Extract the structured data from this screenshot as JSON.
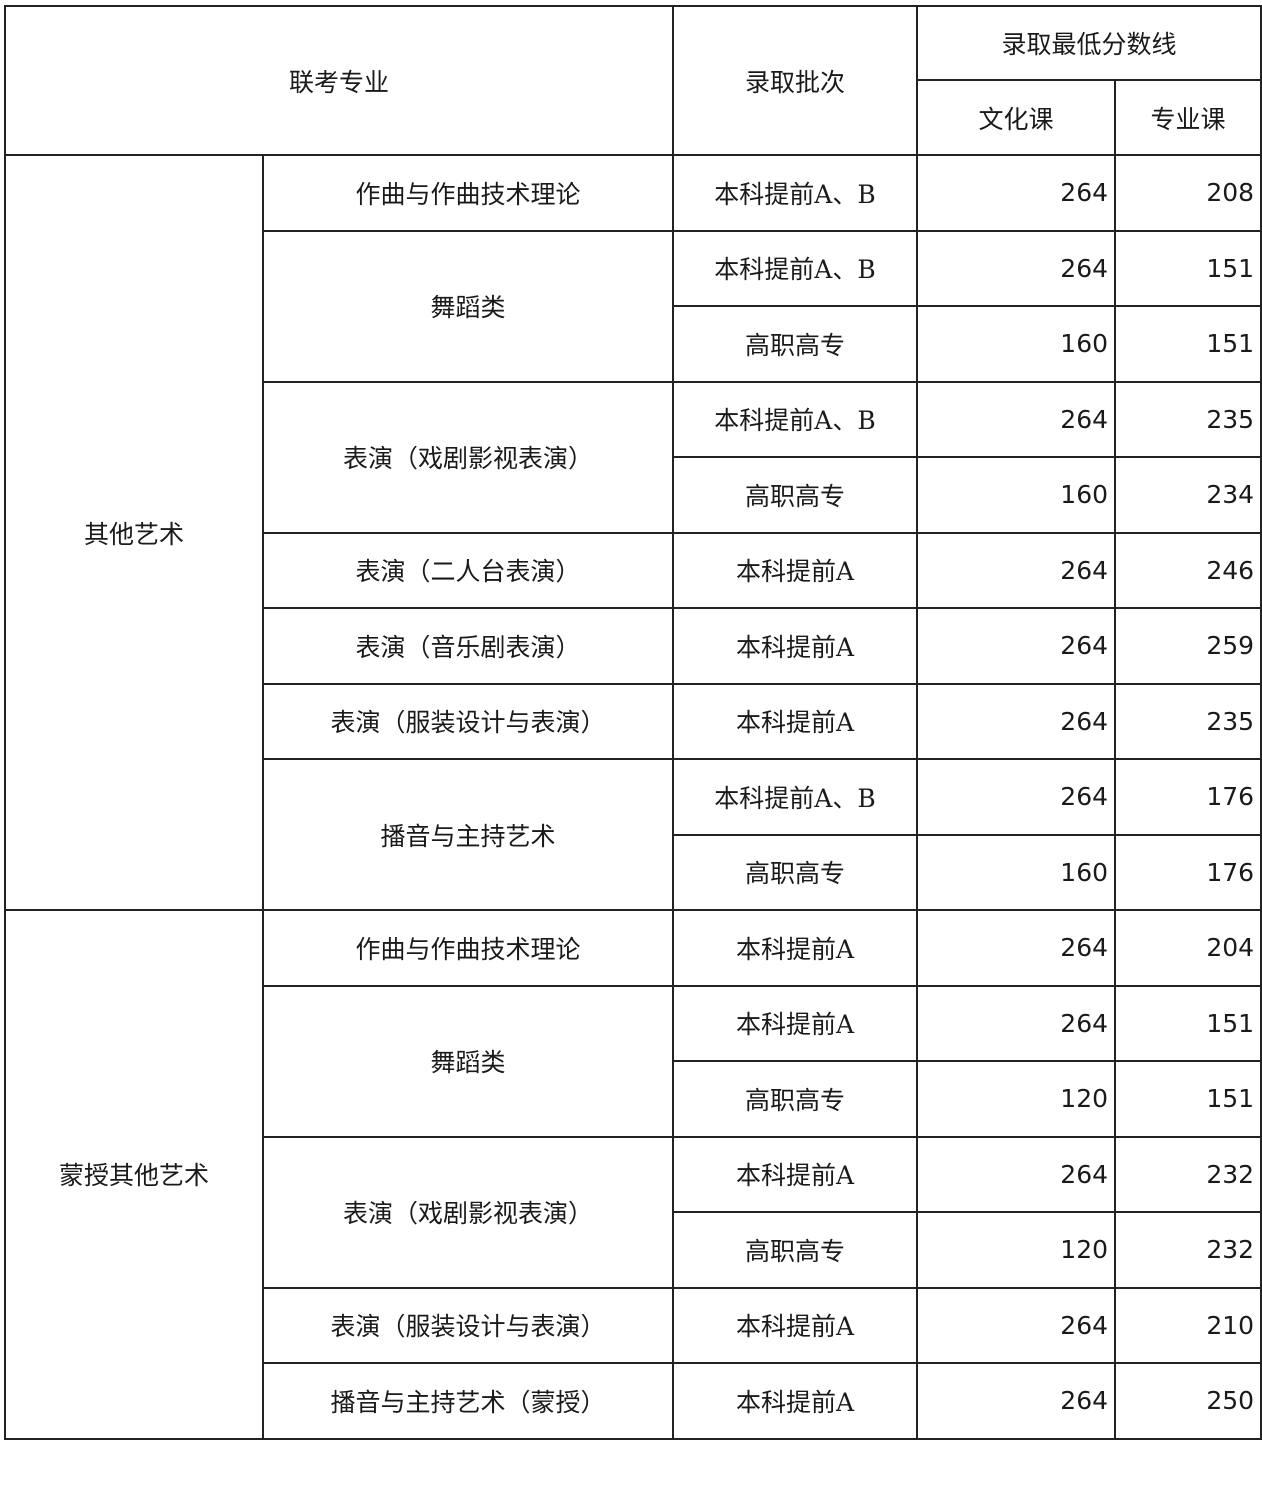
{
  "header": {
    "major": "联考专业",
    "batch": "录取批次",
    "min_score": "录取最低分数线",
    "culture": "文化课",
    "professional": "专业课"
  },
  "groups": [
    {
      "name": "其他艺术",
      "majors": [
        {
          "name": "作曲与作曲技术理论",
          "rows": [
            {
              "batch": "本科提前A、B",
              "culture": "264",
              "professional": "208"
            }
          ]
        },
        {
          "name": "舞蹈类",
          "rows": [
            {
              "batch": "本科提前A、B",
              "culture": "264",
              "professional": "151"
            },
            {
              "batch": "高职高专",
              "culture": "160",
              "professional": "151"
            }
          ]
        },
        {
          "name": "表演（戏剧影视表演）",
          "rows": [
            {
              "batch": "本科提前A、B",
              "culture": "264",
              "professional": "235"
            },
            {
              "batch": "高职高专",
              "culture": "160",
              "professional": "234"
            }
          ]
        },
        {
          "name": "表演（二人台表演）",
          "rows": [
            {
              "batch": "本科提前A",
              "culture": "264",
              "professional": "246"
            }
          ]
        },
        {
          "name": "表演（音乐剧表演）",
          "rows": [
            {
              "batch": "本科提前A",
              "culture": "264",
              "professional": "259"
            }
          ]
        },
        {
          "name": "表演（服装设计与表演）",
          "rows": [
            {
              "batch": "本科提前A",
              "culture": "264",
              "professional": "235"
            }
          ]
        },
        {
          "name": "播音与主持艺术",
          "rows": [
            {
              "batch": "本科提前A、B",
              "culture": "264",
              "professional": "176"
            },
            {
              "batch": "高职高专",
              "culture": "160",
              "professional": "176"
            }
          ]
        }
      ]
    },
    {
      "name": "蒙授其他艺术",
      "majors": [
        {
          "name": "作曲与作曲技术理论",
          "rows": [
            {
              "batch": "本科提前A",
              "culture": "264",
              "professional": "204"
            }
          ]
        },
        {
          "name": "舞蹈类",
          "rows": [
            {
              "batch": "本科提前A",
              "culture": "264",
              "professional": "151"
            },
            {
              "batch": "高职高专",
              "culture": "120",
              "professional": "151"
            }
          ]
        },
        {
          "name": "表演（戏剧影视表演）",
          "rows": [
            {
              "batch": "本科提前A",
              "culture": "264",
              "professional": "232"
            },
            {
              "batch": "高职高专",
              "culture": "120",
              "professional": "232"
            }
          ]
        },
        {
          "name": "表演（服装设计与表演）",
          "rows": [
            {
              "batch": "本科提前A",
              "culture": "264",
              "professional": "210"
            }
          ]
        },
        {
          "name": "播音与主持艺术（蒙授）",
          "rows": [
            {
              "batch": "本科提前A",
              "culture": "264",
              "professional": "250"
            }
          ]
        }
      ]
    }
  ]
}
